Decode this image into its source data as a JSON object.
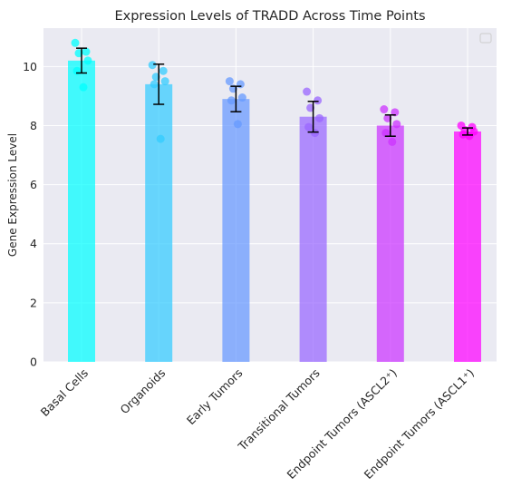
{
  "chart_data": {
    "type": "bar",
    "title": "Expression Levels of TRADD Across Time Points",
    "xlabel": "",
    "ylabel": "Gene Expression Level",
    "ylim": [
      0,
      11.3
    ],
    "yticks": [
      0,
      2,
      4,
      6,
      8,
      10
    ],
    "grid": true,
    "legend": "top-right, empty",
    "categories": [
      "Basal Cells",
      "Organoids",
      "Early Tumors",
      "Transitional Tumors",
      "Endpoint Tumors (ASCL2⁺)",
      "Endpoint Tumors (ASCL1⁺)"
    ],
    "values": [
      10.2,
      9.4,
      8.9,
      8.3,
      8.0,
      7.8
    ],
    "errors": [
      0.42,
      0.68,
      0.43,
      0.52,
      0.36,
      0.12
    ],
    "colors": [
      "#00ffff",
      "#33ccff",
      "#6699ff",
      "#9966ff",
      "#cc33ff",
      "#ff00ff"
    ],
    "points": [
      [
        10.8,
        10.5,
        10.45,
        10.2,
        9.85,
        9.3
      ],
      [
        10.05,
        9.85,
        9.65,
        9.5,
        9.4,
        7.55
      ],
      [
        9.5,
        9.4,
        9.25,
        8.95,
        8.85,
        8.05
      ],
      [
        9.15,
        8.85,
        8.6,
        8.25,
        7.95,
        7.75
      ],
      [
        8.55,
        8.45,
        8.25,
        8.05,
        7.75,
        7.45
      ],
      [
        8.0,
        7.95,
        7.85,
        7.8,
        7.7,
        7.65
      ]
    ]
  }
}
